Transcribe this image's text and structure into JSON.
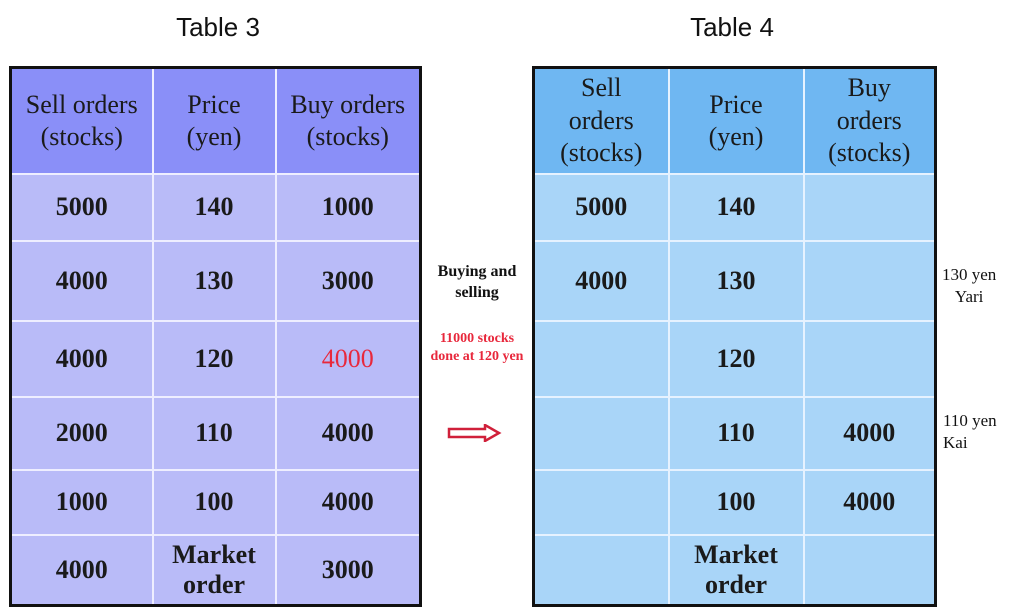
{
  "table3": {
    "title": "Table 3",
    "headers": [
      "Sell orders\n(stocks)",
      "Price\n(yen)",
      "Buy orders\n(stocks)"
    ],
    "rows": [
      [
        "5000",
        "140",
        "1000"
      ],
      [
        "4000",
        "130",
        "3000"
      ],
      [
        "4000",
        "120",
        "4000"
      ],
      [
        "2000",
        "110",
        "4000"
      ],
      [
        "1000",
        "100",
        "4000"
      ],
      [
        "4000",
        "Market\norder",
        "3000"
      ]
    ],
    "highlight_color": "#e8283c"
  },
  "table4": {
    "title": "Table 4",
    "headers": [
      "Sell\norders\n(stocks)",
      "Price\n(yen)",
      "Buy\norders\n(stocks)"
    ],
    "rows": [
      [
        "5000",
        "140",
        ""
      ],
      [
        "4000",
        "130",
        ""
      ],
      [
        "",
        "120",
        ""
      ],
      [
        "",
        "110",
        "4000"
      ],
      [
        "",
        "100",
        "4000"
      ],
      [
        "",
        "Market\norder",
        ""
      ]
    ]
  },
  "middle": {
    "label": "Buying and selling",
    "result": "11000 stocks done at 120 yen",
    "arrow_icon": "right-arrow-icon"
  },
  "notes": {
    "yari": "130 yen\nYari",
    "kai": "110 yen\nKai"
  }
}
